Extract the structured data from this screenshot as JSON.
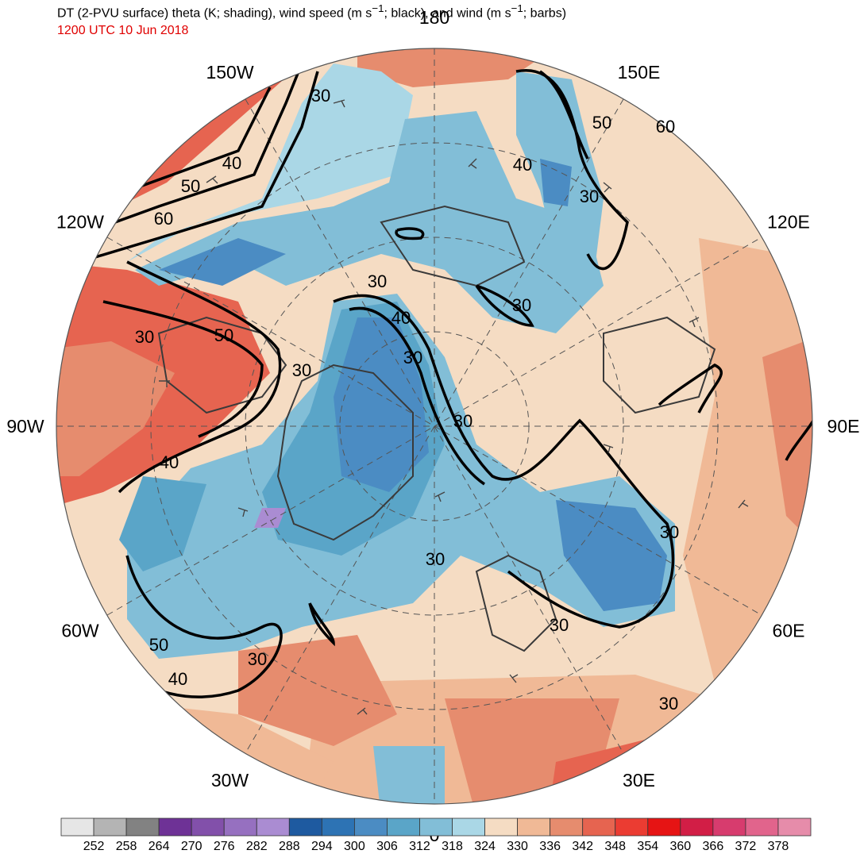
{
  "header": {
    "title_prefix": "DT (2-PVU surface) theta (K; shading), wind speed (m s",
    "title_mid": "; black), and wind (m s",
    "title_suffix": "; barbs)",
    "superscript": "−1",
    "valid_time": "1200 UTC 10 Jun 2018"
  },
  "map": {
    "projection": "north-polar-stereographic",
    "longitude_labels": [
      {
        "text": "180",
        "lon": 180
      },
      {
        "text": "150E",
        "lon": 150
      },
      {
        "text": "120E",
        "lon": 120
      },
      {
        "text": "90E",
        "lon": 90
      },
      {
        "text": "60E",
        "lon": 60
      },
      {
        "text": "30E",
        "lon": 30
      },
      {
        "text": "0",
        "lon": 0
      },
      {
        "text": "30W",
        "lon": -30
      },
      {
        "text": "60W",
        "lon": -60
      },
      {
        "text": "90W",
        "lon": -90
      },
      {
        "text": "120W",
        "lon": -120
      },
      {
        "text": "150W",
        "lon": -150
      }
    ],
    "wind_speed_contour_labels": [
      "30",
      "30",
      "30",
      "30",
      "30",
      "30",
      "30",
      "30",
      "30",
      "30",
      "30",
      "30",
      "30",
      "40",
      "40",
      "40",
      "40",
      "40",
      "50",
      "50",
      "50",
      "50",
      "60",
      "60"
    ]
  },
  "colorbar": {
    "units": "K",
    "ticks": [
      "252",
      "258",
      "264",
      "270",
      "276",
      "282",
      "288",
      "294",
      "300",
      "306",
      "312",
      "318",
      "324",
      "330",
      "336",
      "342",
      "348",
      "354",
      "360",
      "366",
      "372",
      "378"
    ],
    "colors": [
      "#e6e6e6",
      "#b4b4b4",
      "#828282",
      "#6e3296",
      "#8250aa",
      "#9670c0",
      "#aa8cd2",
      "#1e5aa0",
      "#2d73b4",
      "#4b8cc3",
      "#5aa5c8",
      "#82bed7",
      "#aad7e6",
      "#f5dcc3",
      "#f0b996",
      "#e68c6e",
      "#e66450",
      "#eb3c32",
      "#e61414",
      "#d21e46",
      "#d73c6e",
      "#e1648c",
      "#e68caa"
    ]
  }
}
